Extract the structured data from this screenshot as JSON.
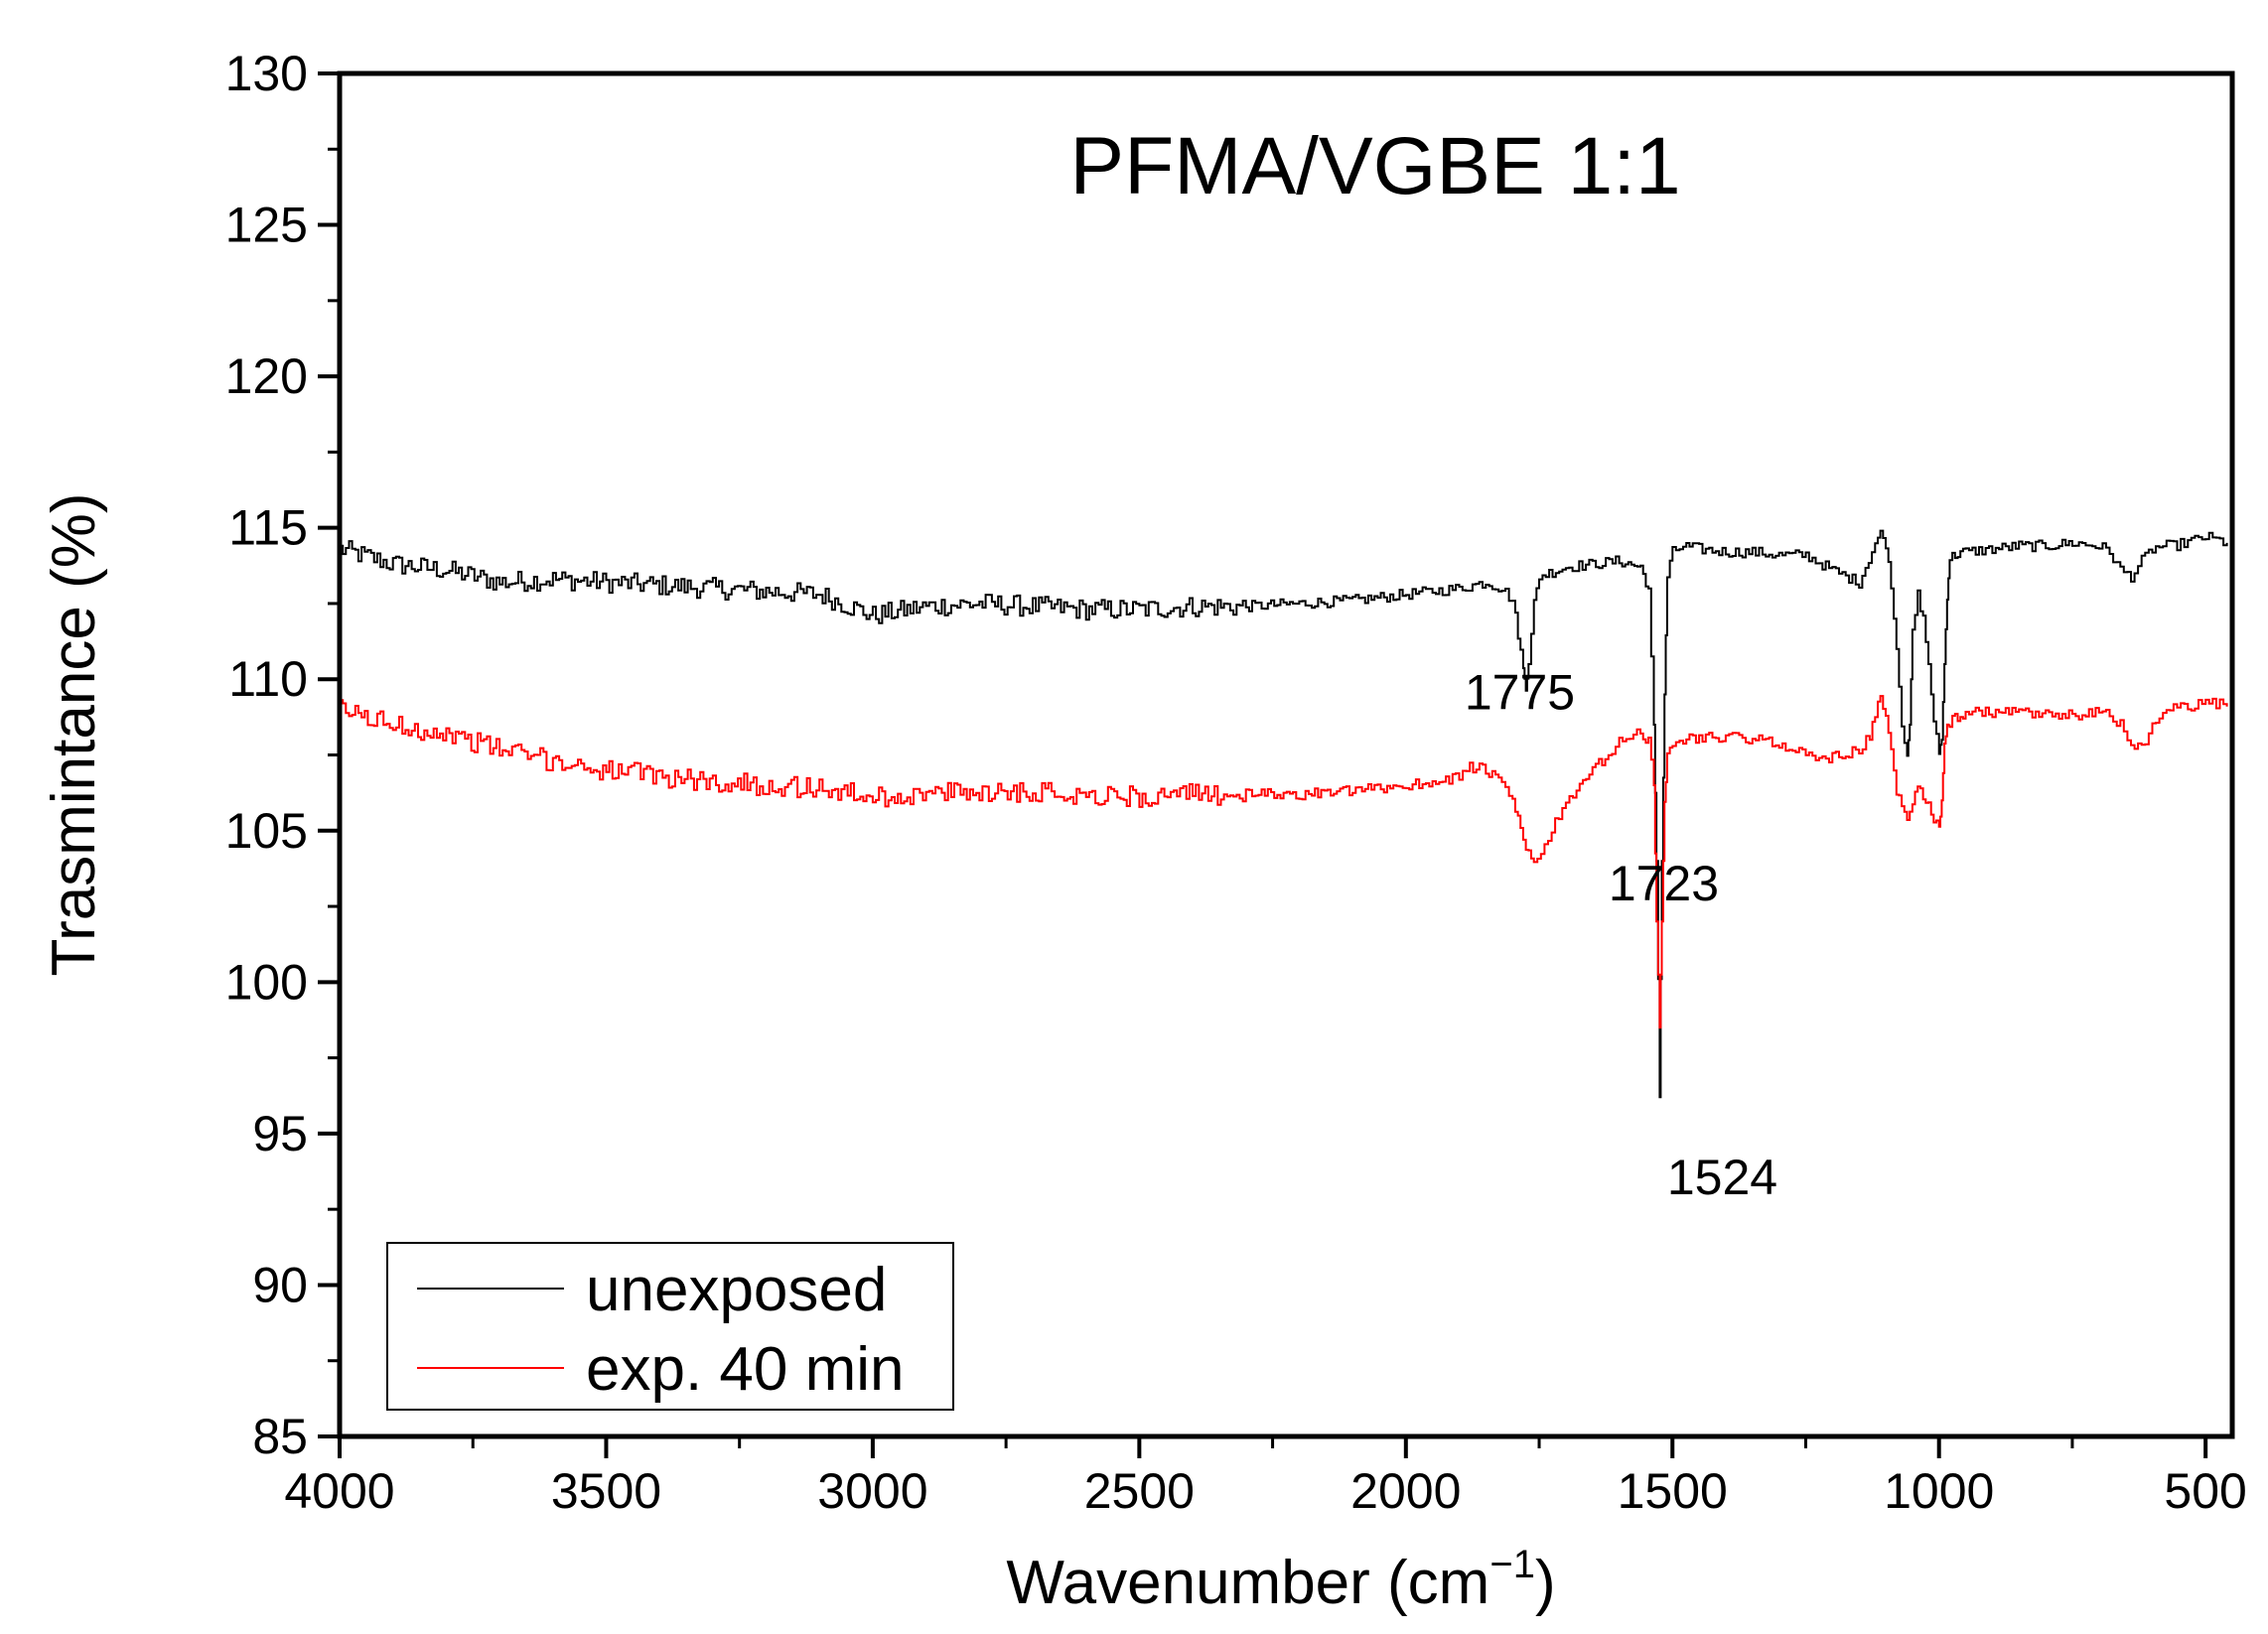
{
  "chart_data": {
    "type": "line",
    "title": "PFMA/VGBE 1:1",
    "xlabel": "Wavenumber (cm",
    "xlabel_sup": "−1",
    "xlabel_tail": ")",
    "ylabel": "Trasmintance (%)",
    "xlim": [
      4000,
      450
    ],
    "x_reversed": true,
    "ylim": [
      85,
      130
    ],
    "grid": false,
    "legend_position": "bottom-left",
    "x_ticks": [
      4000,
      3500,
      3000,
      2500,
      2000,
      1500,
      1000,
      500
    ],
    "x_tick_labels": [
      "4000",
      "3500",
      "3000",
      "2500",
      "2000",
      "1500",
      "1000",
      "500"
    ],
    "y_ticks": [
      85,
      90,
      95,
      100,
      105,
      110,
      115,
      120,
      125,
      130
    ],
    "y_tick_labels": [
      "85",
      "90",
      "95",
      "100",
      "105",
      "110",
      "115",
      "120",
      "125",
      "130"
    ],
    "series": [
      {
        "name": "unexposed",
        "color": "#000000",
        "x": [
          4000,
          3900,
          3800,
          3700,
          3600,
          3500,
          3400,
          3300,
          3200,
          3100,
          3000,
          2900,
          2800,
          2700,
          2600,
          2500,
          2400,
          2300,
          2200,
          2100,
          2000,
          1950,
          1900,
          1850,
          1820,
          1800,
          1790,
          1780,
          1775,
          1770,
          1760,
          1750,
          1700,
          1650,
          1600,
          1560,
          1545,
          1535,
          1530,
          1524,
          1520,
          1515,
          1510,
          1500,
          1480,
          1450,
          1400,
          1350,
          1300,
          1250,
          1200,
          1150,
          1120,
          1110,
          1100,
          1090,
          1080,
          1070,
          1060,
          1055,
          1050,
          1040,
          1030,
          1020,
          1010,
          1000,
          995,
          990,
          985,
          980,
          970,
          960,
          950,
          900,
          850,
          800,
          750,
          700,
          680,
          660,
          640,
          620,
          600,
          580,
          560,
          540,
          520,
          500,
          480,
          460
        ],
        "y": [
          114.3,
          113.8,
          113.6,
          113.2,
          113.3,
          113.2,
          113.1,
          113.0,
          112.9,
          112.8,
          112.1,
          112.4,
          112.5,
          112.4,
          112.3,
          112.3,
          112.4,
          112.4,
          112.5,
          112.6,
          112.8,
          112.9,
          113.0,
          113.2,
          113.0,
          112.6,
          111.5,
          110.3,
          109.8,
          110.5,
          112.5,
          113.4,
          113.7,
          113.8,
          113.9,
          113.7,
          113.0,
          108.5,
          104.0,
          96.2,
          104.0,
          109.5,
          113.4,
          114.2,
          114.4,
          114.3,
          114.2,
          114.2,
          114.1,
          114.1,
          113.6,
          113.2,
          114.5,
          114.8,
          114.5,
          113.0,
          111.0,
          108.5,
          107.6,
          108.5,
          111.5,
          112.8,
          112.0,
          110.5,
          108.5,
          107.6,
          108.0,
          110.5,
          112.8,
          114.0,
          114.1,
          114.2,
          114.2,
          114.3,
          114.4,
          114.4,
          114.5,
          114.4,
          114.2,
          113.6,
          113.4,
          113.9,
          114.3,
          114.4,
          114.4,
          114.5,
          114.6,
          114.7,
          114.6,
          114.5
        ]
      },
      {
        "name": "exp. 40 min",
        "color": "#ff0000",
        "x": [
          4000,
          3900,
          3800,
          3700,
          3600,
          3500,
          3400,
          3300,
          3200,
          3100,
          3000,
          2900,
          2800,
          2700,
          2600,
          2500,
          2400,
          2300,
          2200,
          2100,
          2000,
          1950,
          1900,
          1880,
          1850,
          1820,
          1800,
          1790,
          1780,
          1770,
          1760,
          1740,
          1720,
          1700,
          1680,
          1650,
          1620,
          1600,
          1580,
          1560,
          1545,
          1535,
          1530,
          1524,
          1520,
          1515,
          1510,
          1500,
          1480,
          1450,
          1400,
          1350,
          1300,
          1250,
          1200,
          1150,
          1130,
          1120,
          1110,
          1100,
          1090,
          1080,
          1070,
          1060,
          1050,
          1040,
          1030,
          1020,
          1010,
          1000,
          995,
          990,
          985,
          980,
          970,
          960,
          950,
          900,
          850,
          800,
          750,
          700,
          680,
          660,
          640,
          620,
          600,
          580,
          560,
          540,
          520,
          500,
          480,
          460
        ],
        "y": [
          109.0,
          108.5,
          108.2,
          107.7,
          107.3,
          107.0,
          106.8,
          106.6,
          106.5,
          106.4,
          106.1,
          106.2,
          106.3,
          106.3,
          106.2,
          106.1,
          106.2,
          106.2,
          106.2,
          106.3,
          106.5,
          106.6,
          106.8,
          107.1,
          107.0,
          106.5,
          106.0,
          105.4,
          104.8,
          104.2,
          103.9,
          104.5,
          105.3,
          105.8,
          106.3,
          107.0,
          107.5,
          107.9,
          108.1,
          108.2,
          108.0,
          106.5,
          102.0,
          98.5,
          102.0,
          106.0,
          107.5,
          107.8,
          108.0,
          108.1,
          108.1,
          108.0,
          107.9,
          107.5,
          107.4,
          107.7,
          108.1,
          108.8,
          109.4,
          108.8,
          107.6,
          106.2,
          105.8,
          105.5,
          105.9,
          106.4,
          106.2,
          105.8,
          105.4,
          105.2,
          106.0,
          107.8,
          108.5,
          108.6,
          108.7,
          108.8,
          108.9,
          108.9,
          108.9,
          108.8,
          108.8,
          108.9,
          108.8,
          108.5,
          107.9,
          107.7,
          108.5,
          108.9,
          109.0,
          109.1,
          109.1,
          109.3,
          109.2,
          109.1
        ]
      }
    ],
    "annotations": [
      {
        "text": "1775",
        "x": 1890,
        "y": 109.0
      },
      {
        "text": "1723",
        "x": 1620,
        "y": 102.7
      },
      {
        "text": "1524",
        "x": 1510,
        "y": 93.0
      }
    ]
  }
}
